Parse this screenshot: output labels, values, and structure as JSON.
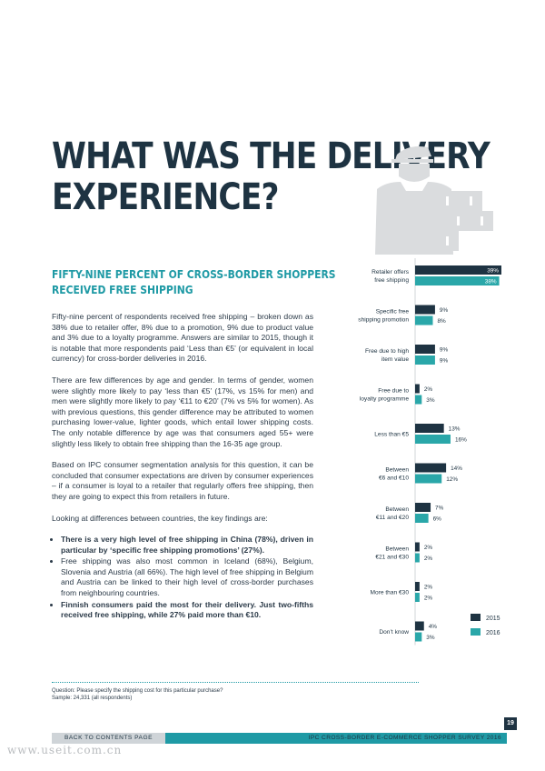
{
  "page": {
    "title_lines": [
      "WHAT WAS THE DELIVERY",
      "EXPERIENCE?"
    ],
    "subtitle_lines": [
      "FIFTY-NINE PERCENT OF CROSS-BORDER SHOPPERS",
      "RECEIVED FREE SHIPPING"
    ],
    "paragraphs": [
      "Fifty-nine percent of respondents received free shipping – broken down as 38% due to retailer offer, 8% due to a promotion, 9% due to product value and 3% due to a loyalty programme. Answers are similar to 2015, though it is notable that more respondents paid ‘Less than €5’ (or equivalent in local currency) for cross-border deliveries in 2016.",
      "There are few differences by age and gender. In terms of gender, women were slightly more likely to pay ‘less than €5’ (17%, vs 15% for men) and men were slightly more likely to pay ‘€11 to €20’ (7% vs 5% for women). As with previous questions, this gender difference may be attributed to women purchasing lower-value, lighter goods, which entail lower shipping costs. The only notable difference by age was that consumers aged 55+ were slightly less likely to obtain free shipping than the 16-35 age group.",
      "Based on IPC consumer segmentation analysis for this question, it can be concluded that consumer expectations are driven by consumer experiences – if a consumer is loyal to a retailer that regularly offers free shipping, then they are going to expect this from retailers in future.",
      "Looking at differences between countries, the key findings are:"
    ],
    "bullets": [
      {
        "text": "There is a very high level of free shipping in China (78%), driven in particular by ‘specific free shipping promotions’ (27%).",
        "bold": true
      },
      {
        "text": "Free shipping was also most common in Iceland (68%), Belgium, Slovenia and Austria (all 66%). The high level of free shipping in Belgium and Austria can be linked to their high level of cross-border purchases from neighbouring countries.",
        "bold": false
      },
      {
        "text": "Finnish consumers paid the most for their delivery. Just two-fifths received free shipping, while 27% paid more than €10.",
        "bold": true
      }
    ],
    "footnote_lines": [
      "Question: Please specify the shipping cost for this particular purchase?",
      "Sample: 24,331 (all respondents)"
    ],
    "footer_left": "BACK TO CONTENTS PAGE",
    "footer_right": "IPC CROSS-BORDER E-COMMERCE SHOPPER SURVEY 2016",
    "page_number": "19",
    "watermark": "www.useit.com.cn"
  },
  "colors": {
    "navy": "#1e3342",
    "teal": "#2aa7a9",
    "accent": "#1f9aa5",
    "figure_gray": "#dadcde"
  },
  "chart_data": {
    "type": "bar",
    "orientation": "horizontal",
    "categories": [
      [
        "Retailer offers",
        "free shipping"
      ],
      [
        "Specific free",
        "shipping promotion"
      ],
      [
        "Free due to high",
        "item value"
      ],
      [
        "Free due to",
        "loyalty programme"
      ],
      [
        "Less than €5"
      ],
      [
        "Between",
        "€6 and €10"
      ],
      [
        "Between",
        "€11 and €20"
      ],
      [
        "Between",
        "€21 and €30"
      ],
      [
        "More than €30"
      ],
      [
        "Don’t know"
      ]
    ],
    "series": [
      {
        "name": "2015",
        "values": [
          39,
          9,
          9,
          2,
          13,
          14,
          7,
          2,
          2,
          4
        ],
        "labels": [
          "39%",
          "9%",
          "9%",
          "2%",
          "13%",
          "14%",
          "7%",
          "2%",
          "2%",
          "4%"
        ]
      },
      {
        "name": "2016",
        "values": [
          38,
          8,
          9,
          3,
          16,
          12,
          6,
          2,
          2,
          3
        ],
        "labels": [
          "38%",
          "8%",
          "9%",
          "3%",
          "16%",
          "12%",
          "6%",
          "2%",
          "2%",
          "3%"
        ]
      }
    ],
    "xlim": [
      0,
      39
    ],
    "legend": "bottom-right"
  }
}
